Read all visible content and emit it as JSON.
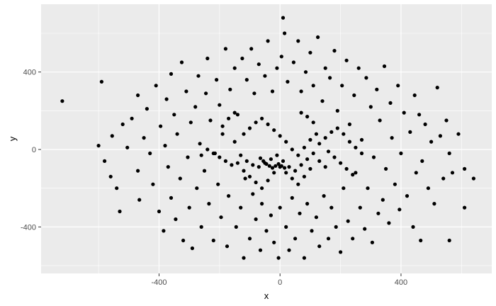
{
  "chart_data": {
    "type": "scatter",
    "title": "",
    "xlabel": "x",
    "ylabel": "y",
    "xlim": [
      -790,
      700
    ],
    "ylim": [
      -640,
      750
    ],
    "x_ticks": [
      -400,
      0,
      400
    ],
    "y_ticks": [
      -400,
      0,
      400
    ],
    "x_tick_labels": [
      "-400",
      "0",
      "400"
    ],
    "y_tick_labels": [
      "-400",
      "0",
      "400"
    ],
    "grid": true,
    "background": "#ebebeb",
    "grid_color": "#ffffff",
    "point_color": "#000000",
    "points": [
      [
        -720,
        250
      ],
      [
        -590,
        350
      ],
      [
        -580,
        -60
      ],
      [
        -540,
        -200
      ],
      [
        -530,
        -320
      ],
      [
        -520,
        130
      ],
      [
        -555,
        70
      ],
      [
        -505,
        10
      ],
      [
        -490,
        160
      ],
      [
        -470,
        280
      ],
      [
        -470,
        -110
      ],
      [
        -465,
        -260
      ],
      [
        -450,
        60
      ],
      [
        -440,
        210
      ],
      [
        -430,
        -20
      ],
      [
        -420,
        -180
      ],
      [
        -410,
        330
      ],
      [
        -400,
        -320
      ],
      [
        -395,
        120
      ],
      [
        -385,
        -420
      ],
      [
        -380,
        20
      ],
      [
        -375,
        260
      ],
      [
        -370,
        -90
      ],
      [
        -360,
        390
      ],
      [
        -360,
        -250
      ],
      [
        -350,
        180
      ],
      [
        -345,
        -360
      ],
      [
        -340,
        80
      ],
      [
        -330,
        -150
      ],
      [
        -325,
        450
      ],
      [
        -320,
        -470
      ],
      [
        -310,
        300
      ],
      [
        -305,
        -40
      ],
      [
        -300,
        -300
      ],
      [
        -295,
        140
      ],
      [
        -290,
        -510
      ],
      [
        -280,
        220
      ],
      [
        -275,
        -200
      ],
      [
        -270,
        380
      ],
      [
        -265,
        30
      ],
      [
        -260,
        -400
      ],
      [
        -250,
        -110
      ],
      [
        -245,
        290
      ],
      [
        -240,
        470
      ],
      [
        -235,
        -280
      ],
      [
        -230,
        150
      ],
      [
        -220,
        -470
      ],
      [
        -215,
        -20
      ],
      [
        -210,
        360
      ],
      [
        -205,
        -180
      ],
      [
        -200,
        230
      ],
      [
        -195,
        -350
      ],
      [
        -190,
        80
      ],
      [
        -180,
        520
      ],
      [
        -175,
        -500
      ],
      [
        -170,
        -240
      ],
      [
        -165,
        310
      ],
      [
        -160,
        -80
      ],
      [
        -150,
        420
      ],
      [
        -145,
        -400
      ],
      [
        -140,
        180
      ],
      [
        -130,
        -300
      ],
      [
        -125,
        470
      ],
      [
        -120,
        -560
      ],
      [
        -115,
        -150
      ],
      [
        -110,
        360
      ],
      [
        -100,
        -460
      ],
      [
        -95,
        520
      ],
      [
        -90,
        -230
      ],
      [
        -85,
        290
      ],
      [
        -80,
        -360
      ],
      [
        -70,
        440
      ],
      [
        -65,
        -520
      ],
      [
        -60,
        -280
      ],
      [
        -50,
        380
      ],
      [
        -45,
        -420
      ],
      [
        -40,
        560
      ],
      [
        -30,
        -340
      ],
      [
        -25,
        300
      ],
      [
        -20,
        -480
      ],
      [
        -10,
        420
      ],
      [
        -5,
        -560
      ],
      [
        0,
        -300
      ],
      [
        5,
        480
      ],
      [
        10,
        680
      ],
      [
        15,
        600
      ],
      [
        20,
        -400
      ],
      [
        25,
        350
      ],
      [
        30,
        -520
      ],
      [
        40,
        -250
      ],
      [
        45,
        450
      ],
      [
        50,
        -460
      ],
      [
        60,
        560
      ],
      [
        65,
        -330
      ],
      [
        70,
        300
      ],
      [
        80,
        -560
      ],
      [
        85,
        400
      ],
      [
        90,
        -280
      ],
      [
        100,
        500
      ],
      [
        105,
        -420
      ],
      [
        110,
        330
      ],
      [
        120,
        -350
      ],
      [
        125,
        580
      ],
      [
        130,
        -500
      ],
      [
        140,
        250
      ],
      [
        145,
        -240
      ],
      [
        150,
        420
      ],
      [
        160,
        -460
      ],
      [
        165,
        370
      ],
      [
        170,
        -300
      ],
      [
        180,
        510
      ],
      [
        185,
        -400
      ],
      [
        190,
        200
      ],
      [
        200,
        -530
      ],
      [
        205,
        330
      ],
      [
        210,
        -200
      ],
      [
        220,
        460
      ],
      [
        225,
        -370
      ],
      [
        230,
        130
      ],
      [
        240,
        -460
      ],
      [
        245,
        280
      ],
      [
        250,
        -120
      ],
      [
        260,
        420
      ],
      [
        265,
        -300
      ],
      [
        270,
        50
      ],
      [
        280,
        -410
      ],
      [
        285,
        370
      ],
      [
        290,
        -200
      ],
      [
        300,
        220
      ],
      [
        305,
        -480
      ],
      [
        310,
        -40
      ],
      [
        320,
        310
      ],
      [
        325,
        -330
      ],
      [
        330,
        150
      ],
      [
        340,
        -260
      ],
      [
        345,
        430
      ],
      [
        350,
        -100
      ],
      [
        360,
        -380
      ],
      [
        365,
        240
      ],
      [
        370,
        60
      ],
      [
        380,
        -180
      ],
      [
        390,
        330
      ],
      [
        395,
        -310
      ],
      [
        400,
        -20
      ],
      [
        410,
        190
      ],
      [
        420,
        -240
      ],
      [
        430,
        90
      ],
      [
        440,
        -400
      ],
      [
        445,
        280
      ],
      [
        450,
        -120
      ],
      [
        460,
        180
      ],
      [
        465,
        -470
      ],
      [
        470,
        -60
      ],
      [
        480,
        130
      ],
      [
        490,
        -200
      ],
      [
        500,
        40
      ],
      [
        510,
        -280
      ],
      [
        520,
        320
      ],
      [
        530,
        70
      ],
      [
        540,
        -150
      ],
      [
        550,
        150
      ],
      [
        560,
        -20
      ],
      [
        570,
        -120
      ],
      [
        590,
        80
      ],
      [
        610,
        -100
      ],
      [
        640,
        -150
      ],
      [
        -600,
        20
      ],
      [
        -560,
        -140
      ],
      [
        610,
        -300
      ],
      [
        560,
        -470
      ],
      [
        -130,
        -30
      ],
      [
        -110,
        -60
      ],
      [
        -90,
        -80
      ],
      [
        -70,
        -90
      ],
      [
        -50,
        -70
      ],
      [
        -30,
        -50
      ],
      [
        -10,
        -30
      ],
      [
        10,
        -60
      ],
      [
        30,
        -90
      ],
      [
        50,
        -110
      ],
      [
        70,
        -80
      ],
      [
        90,
        -50
      ],
      [
        110,
        -20
      ],
      [
        -150,
        40
      ],
      [
        -120,
        80
      ],
      [
        -100,
        110
      ],
      [
        -80,
        140
      ],
      [
        -60,
        160
      ],
      [
        -40,
        130
      ],
      [
        -20,
        100
      ],
      [
        0,
        70
      ],
      [
        20,
        40
      ],
      [
        40,
        0
      ],
      [
        60,
        -30
      ],
      [
        80,
        10
      ],
      [
        100,
        50
      ],
      [
        120,
        80
      ],
      [
        -140,
        -70
      ],
      [
        -120,
        -110
      ],
      [
        -100,
        -140
      ],
      [
        -80,
        -170
      ],
      [
        -60,
        -200
      ],
      [
        -40,
        -160
      ],
      [
        -20,
        -120
      ],
      [
        0,
        -90
      ],
      [
        20,
        -120
      ],
      [
        40,
        -150
      ],
      [
        60,
        -180
      ],
      [
        80,
        -140
      ],
      [
        100,
        -100
      ],
      [
        130,
        30
      ],
      [
        150,
        60
      ],
      [
        170,
        90
      ],
      [
        190,
        110
      ],
      [
        210,
        80
      ],
      [
        230,
        40
      ],
      [
        250,
        10
      ],
      [
        270,
        -20
      ],
      [
        160,
        -10
      ],
      [
        180,
        -40
      ],
      [
        200,
        -70
      ],
      [
        220,
        -100
      ],
      [
        240,
        -130
      ],
      [
        -180,
        -60
      ],
      [
        -200,
        -40
      ],
      [
        -220,
        -20
      ],
      [
        -240,
        0
      ],
      [
        -260,
        -30
      ],
      [
        -190,
        120
      ],
      [
        -170,
        160
      ],
      [
        -150,
        190
      ],
      [
        130,
        -60
      ],
      [
        150,
        -90
      ],
      [
        110,
        140
      ],
      [
        90,
        170
      ],
      [
        70,
        190
      ],
      [
        -45,
        -75
      ],
      [
        -35,
        -85
      ],
      [
        -25,
        -95
      ],
      [
        -15,
        -85
      ],
      [
        -5,
        -75
      ],
      [
        5,
        -85
      ],
      [
        15,
        -95
      ],
      [
        -55,
        -60
      ],
      [
        -65,
        -45
      ]
    ]
  }
}
